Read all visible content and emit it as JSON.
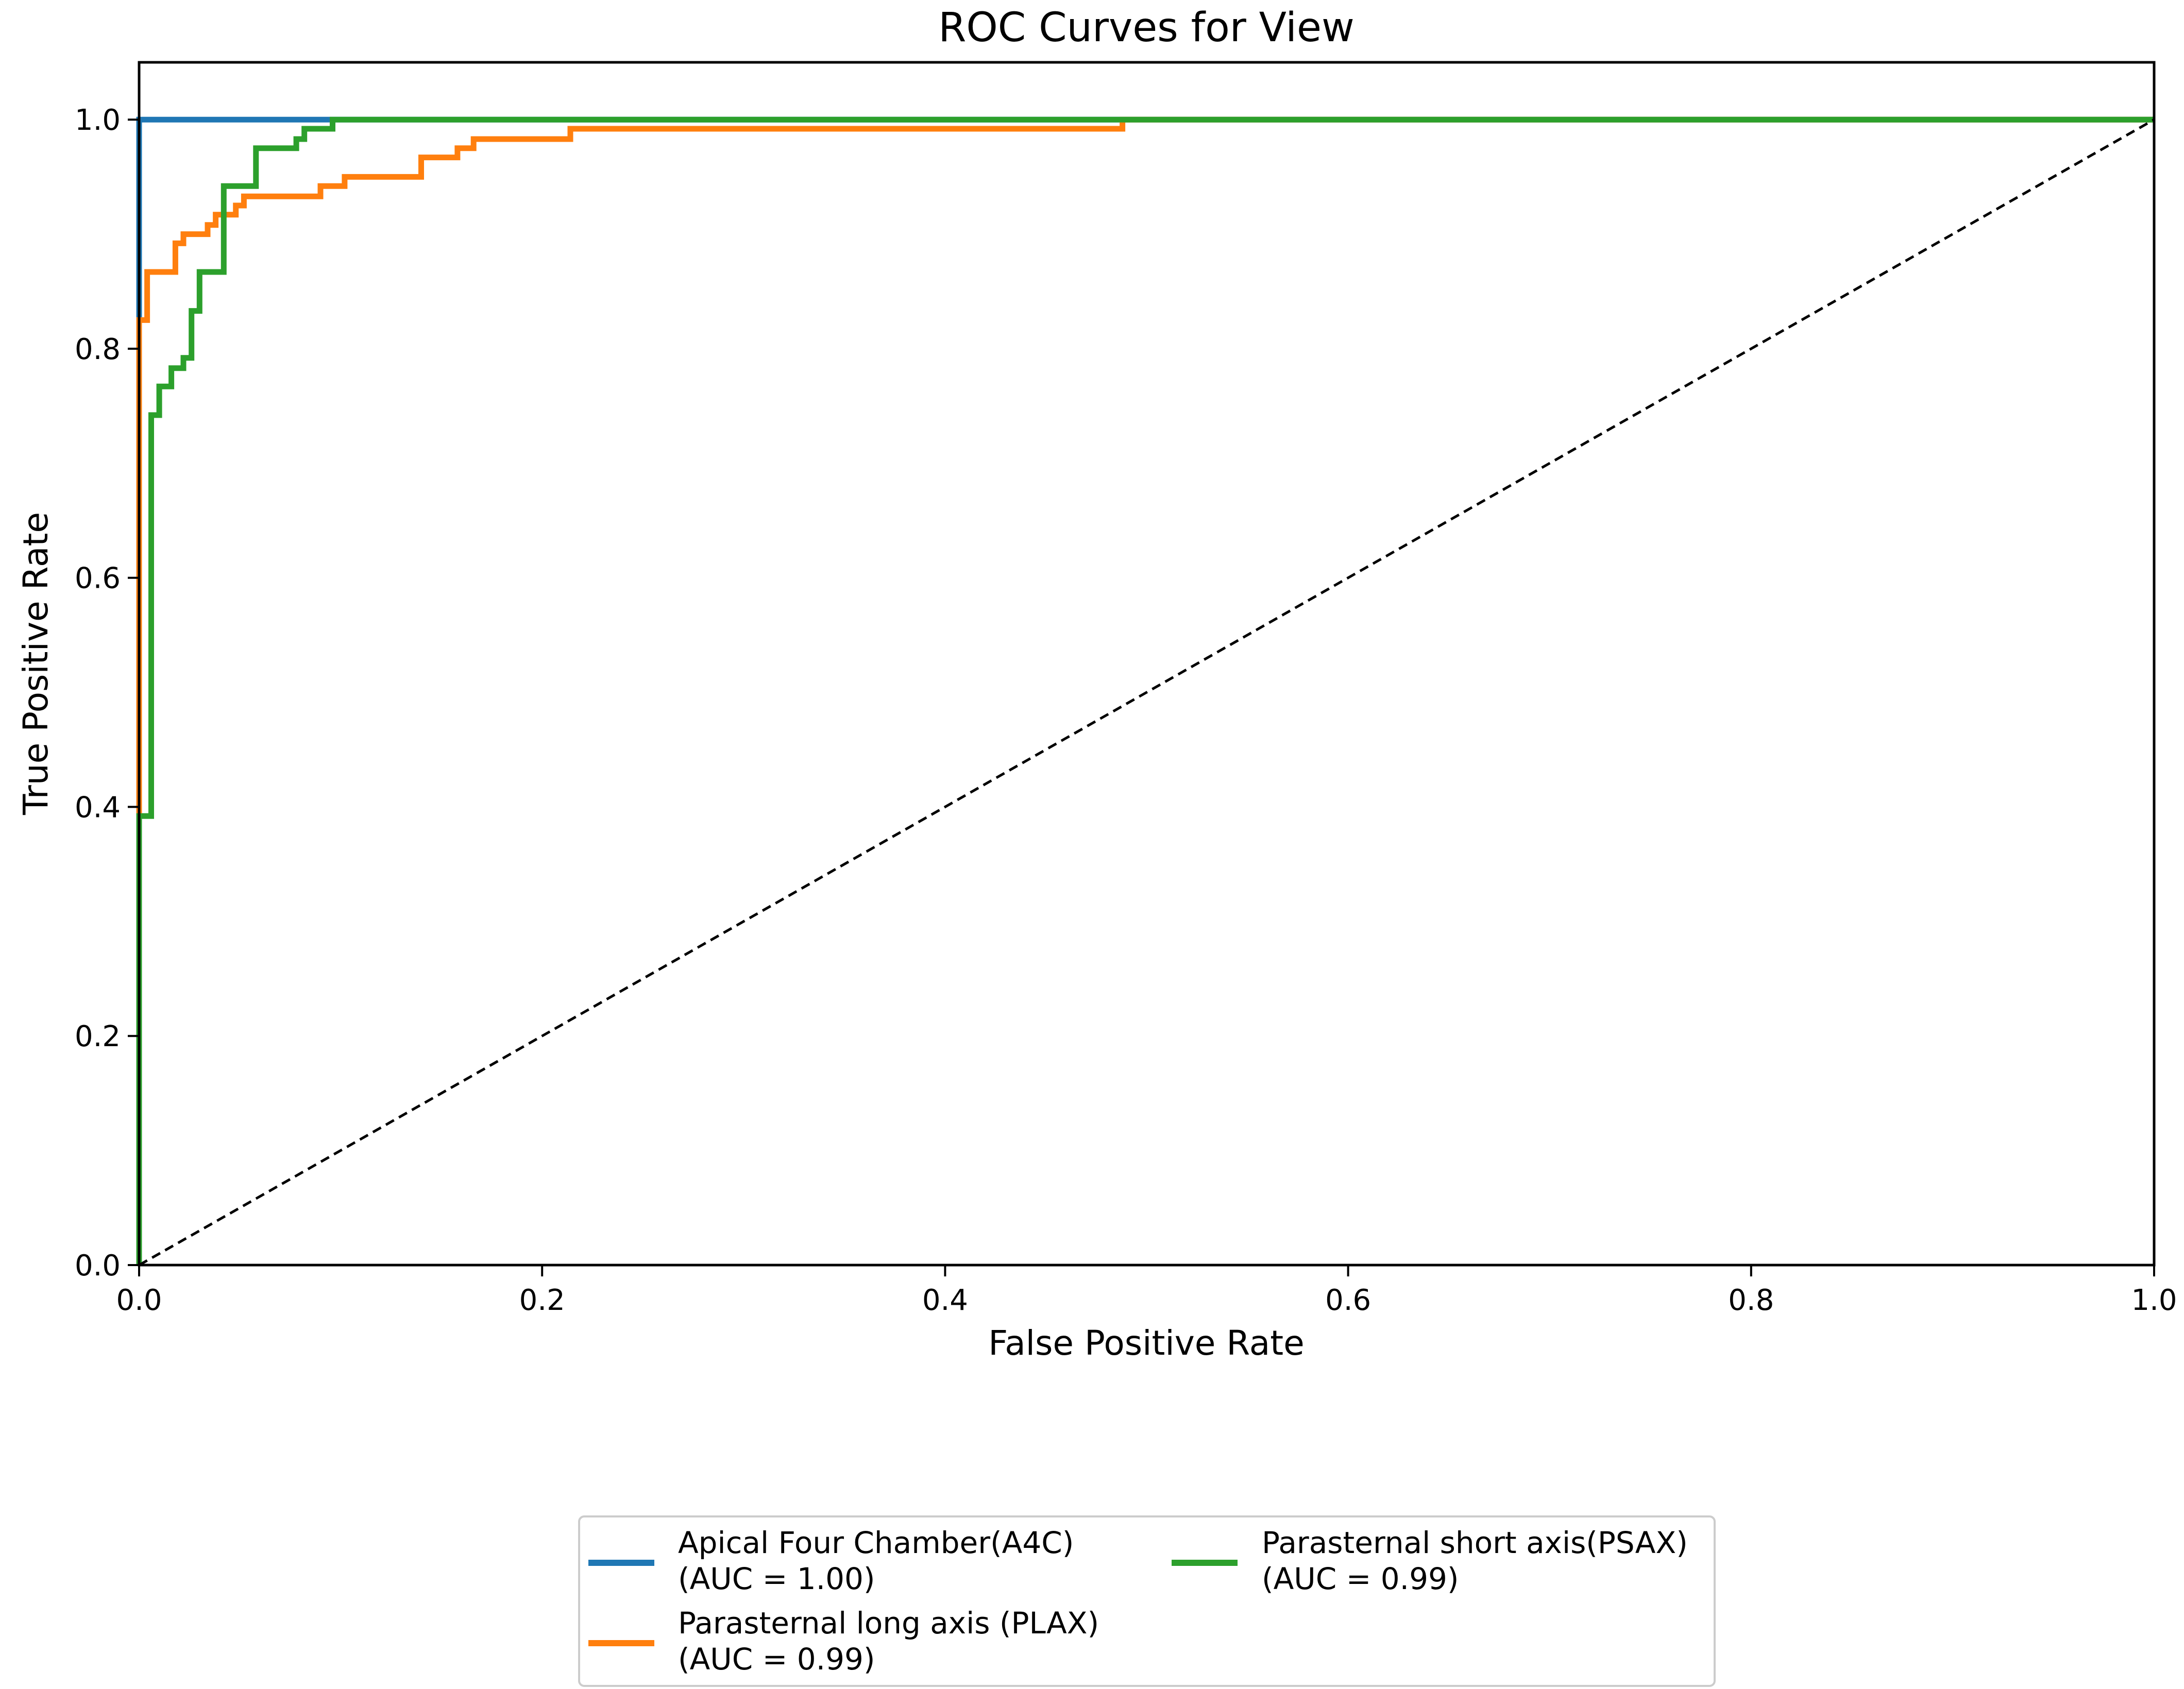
{
  "chart_data": {
    "type": "line",
    "title": "ROC Curves for View",
    "xlabel": "False Positive Rate",
    "ylabel": "True Positive Rate",
    "xlim": [
      0.0,
      1.0
    ],
    "ylim": [
      0.0,
      1.05
    ],
    "grid": false,
    "legend_position": "bottom-center-below-axes",
    "x_ticks": [
      {
        "value": 0.0,
        "label": "0.0"
      },
      {
        "value": 0.2,
        "label": "0.2"
      },
      {
        "value": 0.4,
        "label": "0.4"
      },
      {
        "value": 0.6,
        "label": "0.6"
      },
      {
        "value": 0.8,
        "label": "0.8"
      },
      {
        "value": 1.0,
        "label": "1.0"
      }
    ],
    "y_ticks": [
      {
        "value": 0.0,
        "label": "0.0"
      },
      {
        "value": 0.2,
        "label": "0.2"
      },
      {
        "value": 0.4,
        "label": "0.4"
      },
      {
        "value": 0.6,
        "label": "0.6"
      },
      {
        "value": 0.8,
        "label": "0.8"
      },
      {
        "value": 1.0,
        "label": "1.0"
      }
    ],
    "series": [
      {
        "name": "Apical Four Chamber(A4C)",
        "auc_label": "(AUC = 1.00)",
        "color": "#1f77b4",
        "x": [
          0.0,
          0.0,
          0.105,
          1.0
        ],
        "y": [
          0.0,
          1.0,
          1.0,
          1.0
        ]
      },
      {
        "name": "Parasternal long axis (PLAX)",
        "auc_label": "(AUC = 0.99)",
        "color": "#ff7f0e",
        "x": [
          0.0,
          0.0,
          0.004,
          0.004,
          0.018,
          0.018,
          0.022,
          0.022,
          0.034,
          0.034,
          0.038,
          0.038,
          0.048,
          0.048,
          0.052,
          0.052,
          0.056,
          0.056,
          0.09,
          0.09,
          0.102,
          0.102,
          0.14,
          0.14,
          0.158,
          0.158,
          0.166,
          0.166,
          0.214,
          0.214,
          0.488,
          0.488,
          1.0
        ],
        "y": [
          0.0,
          0.825,
          0.825,
          0.867,
          0.867,
          0.892,
          0.892,
          0.9,
          0.9,
          0.908,
          0.908,
          0.917,
          0.917,
          0.925,
          0.925,
          0.933,
          0.933,
          0.933,
          0.933,
          0.942,
          0.942,
          0.95,
          0.95,
          0.967,
          0.967,
          0.975,
          0.975,
          0.983,
          0.983,
          0.992,
          0.992,
          1.0,
          1.0
        ]
      },
      {
        "name": "Parasternal short axis(PSAX)",
        "auc_label": "(AUC = 0.99)",
        "color": "#2ca02c",
        "x": [
          0.0,
          0.0,
          0.006,
          0.006,
          0.01,
          0.01,
          0.016,
          0.016,
          0.022,
          0.022,
          0.026,
          0.026,
          0.03,
          0.03,
          0.036,
          0.036,
          0.042,
          0.042,
          0.058,
          0.058,
          0.078,
          0.078,
          0.082,
          0.082,
          0.09,
          0.09,
          0.096,
          0.096,
          0.104,
          0.104,
          1.0
        ],
        "y": [
          0.0,
          0.392,
          0.392,
          0.742,
          0.742,
          0.767,
          0.767,
          0.783,
          0.783,
          0.792,
          0.792,
          0.833,
          0.833,
          0.867,
          0.867,
          0.867,
          0.867,
          0.942,
          0.942,
          0.975,
          0.975,
          0.983,
          0.983,
          0.992,
          0.992,
          0.992,
          0.992,
          1.0,
          1.0,
          1.0,
          1.0
        ]
      }
    ],
    "reference_line": {
      "name": "chance",
      "x": [
        0.0,
        1.0
      ],
      "y": [
        0.0,
        1.0
      ],
      "color": "#000000",
      "style": "dashed"
    }
  }
}
